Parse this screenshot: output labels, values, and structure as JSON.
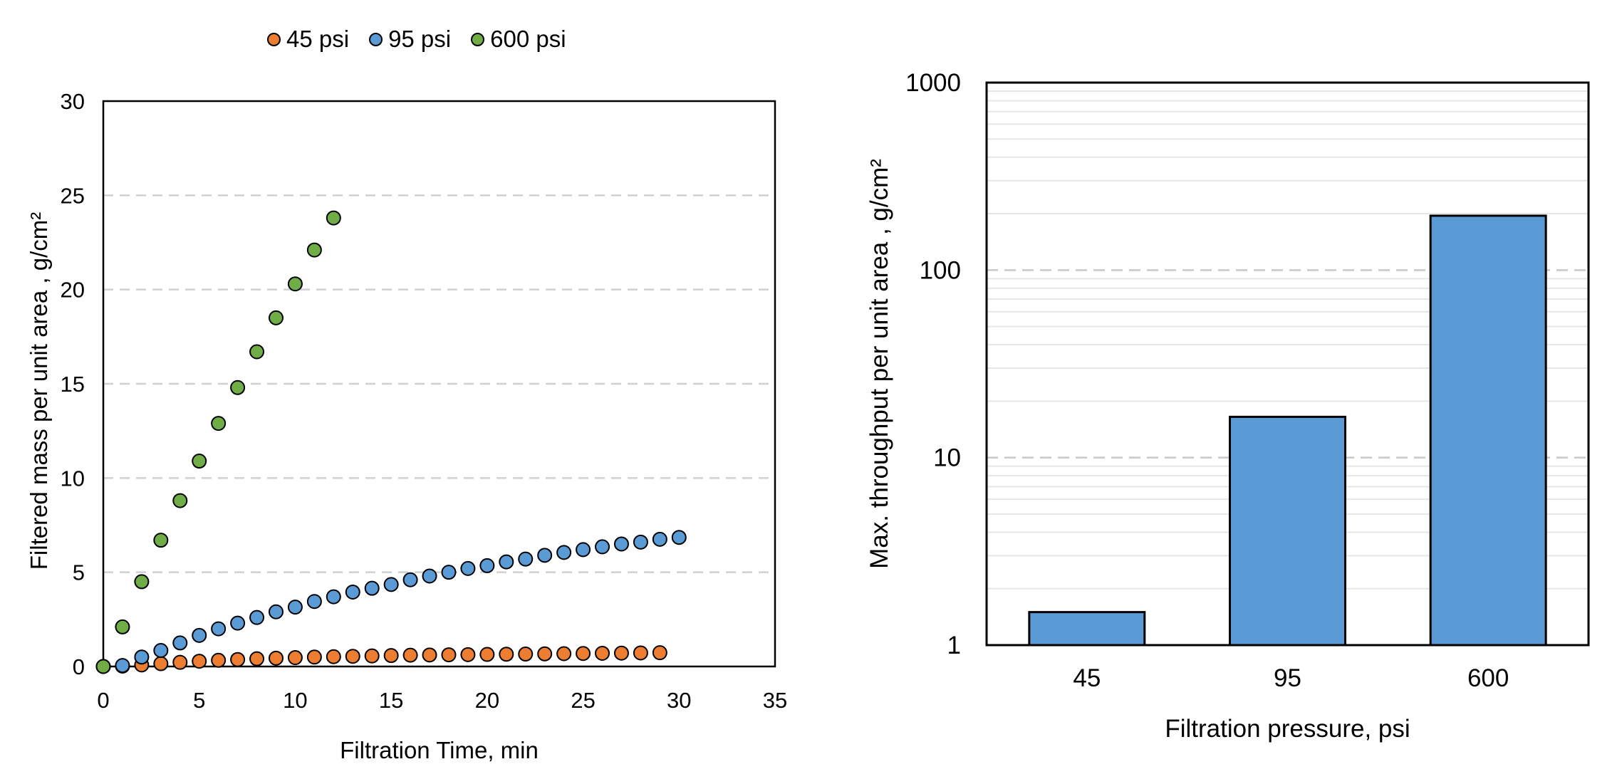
{
  "chart_data": [
    {
      "type": "scatter",
      "title": "",
      "xlabel": "Filtration Time, min",
      "ylabel": "Filtered mass per unit area , g/cm²",
      "xlim": [
        0,
        35
      ],
      "ylim": [
        0,
        30
      ],
      "xticks": [
        "0",
        "5",
        "10",
        "15",
        "20",
        "25",
        "30",
        "35"
      ],
      "yticks": [
        "0",
        "5",
        "10",
        "15",
        "20",
        "25",
        "30"
      ],
      "grid": "horizontal dashed",
      "legend_position": "top",
      "series": [
        {
          "name": "45 psi",
          "color": "#ED7D31",
          "x": [
            0,
            1,
            2,
            3,
            4,
            5,
            6,
            7,
            8,
            9,
            10,
            11,
            12,
            13,
            14,
            15,
            16,
            17,
            18,
            19,
            20,
            21,
            22,
            23,
            24,
            25,
            26,
            27,
            28,
            29
          ],
          "y": [
            0,
            0.02,
            0.08,
            0.15,
            0.22,
            0.28,
            0.33,
            0.37,
            0.41,
            0.44,
            0.47,
            0.5,
            0.52,
            0.54,
            0.56,
            0.58,
            0.6,
            0.61,
            0.62,
            0.63,
            0.64,
            0.65,
            0.66,
            0.67,
            0.68,
            0.69,
            0.7,
            0.71,
            0.72,
            0.73
          ]
        },
        {
          "name": "95 psi",
          "color": "#5B9BD5",
          "x": [
            0,
            1,
            2,
            3,
            4,
            5,
            6,
            7,
            8,
            9,
            10,
            11,
            12,
            13,
            14,
            15,
            16,
            17,
            18,
            19,
            20,
            21,
            22,
            23,
            24,
            25,
            26,
            27,
            28,
            29,
            30
          ],
          "y": [
            0,
            0.05,
            0.5,
            0.85,
            1.25,
            1.65,
            2.0,
            2.3,
            2.6,
            2.9,
            3.15,
            3.45,
            3.7,
            3.95,
            4.15,
            4.35,
            4.6,
            4.8,
            5.0,
            5.2,
            5.35,
            5.55,
            5.7,
            5.9,
            6.05,
            6.2,
            6.35,
            6.5,
            6.6,
            6.75,
            6.85
          ]
        },
        {
          "name": "600 psi",
          "color": "#70AD47",
          "x": [
            0,
            1,
            2,
            3,
            4,
            5,
            6,
            7,
            8,
            9,
            10,
            11,
            12
          ],
          "y": [
            0,
            2.1,
            4.5,
            6.7,
            8.8,
            10.9,
            12.9,
            14.8,
            16.7,
            18.5,
            20.3,
            22.1,
            23.8
          ]
        }
      ]
    },
    {
      "type": "bar",
      "title": "",
      "xlabel": "Filtration pressure, psi",
      "ylabel": "Max. throughput per unit area , g/cm²",
      "yscale": "log",
      "ylim": [
        1,
        1000
      ],
      "yticks": [
        "1",
        "10",
        "100",
        "1000"
      ],
      "categories": [
        "45",
        "95",
        "600"
      ],
      "values": [
        1.5,
        16.5,
        195
      ],
      "color": "#5B9BD5",
      "grid": "horizontal minor solid, major dashed"
    }
  ]
}
